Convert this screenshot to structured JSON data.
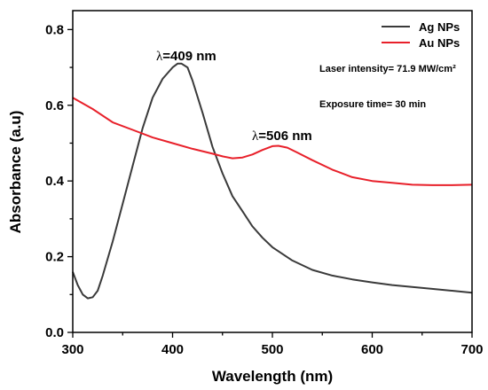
{
  "chart_data": {
    "type": "line",
    "xlabel": "Wavelength (nm)",
    "ylabel": "Absorbance (a.u)",
    "xlim": [
      300,
      700
    ],
    "ylim": [
      0,
      0.85
    ],
    "x_ticks": [
      "300",
      "400",
      "500",
      "600",
      "700"
    ],
    "y_ticks": [
      "0.0",
      "0.2",
      "0.4",
      "0.6",
      "0.8"
    ],
    "grid": false,
    "legend_position": "top-right",
    "series": [
      {
        "name": "Ag NPs",
        "color": "#3a3a3a",
        "x": [
          300,
          305,
          310,
          315,
          320,
          325,
          330,
          340,
          350,
          360,
          370,
          380,
          390,
          400,
          405,
          409,
          415,
          420,
          430,
          440,
          450,
          460,
          470,
          480,
          490,
          500,
          520,
          540,
          560,
          580,
          600,
          620,
          640,
          660,
          680,
          700
        ],
        "y": [
          0.16,
          0.125,
          0.1,
          0.09,
          0.093,
          0.11,
          0.15,
          0.24,
          0.34,
          0.44,
          0.54,
          0.62,
          0.67,
          0.7,
          0.71,
          0.71,
          0.7,
          0.665,
          0.58,
          0.49,
          0.42,
          0.36,
          0.32,
          0.28,
          0.25,
          0.225,
          0.19,
          0.165,
          0.15,
          0.14,
          0.132,
          0.125,
          0.12,
          0.115,
          0.11,
          0.105
        ]
      },
      {
        "name": "Au NPs",
        "color": "#e8202a",
        "x": [
          300,
          320,
          340,
          360,
          380,
          400,
          420,
          440,
          450,
          460,
          470,
          480,
          490,
          500,
          506,
          515,
          525,
          540,
          560,
          580,
          600,
          620,
          640,
          660,
          680,
          700
        ],
        "y": [
          0.62,
          0.59,
          0.555,
          0.535,
          0.515,
          0.5,
          0.485,
          0.472,
          0.465,
          0.46,
          0.462,
          0.47,
          0.482,
          0.492,
          0.493,
          0.488,
          0.475,
          0.455,
          0.43,
          0.41,
          0.4,
          0.395,
          0.39,
          0.389,
          0.389,
          0.39
        ]
      }
    ],
    "peak_labels": [
      {
        "lambda": "λ",
        "rest": "=409 nm"
      },
      {
        "lambda": "λ",
        "rest": "=506 nm"
      }
    ],
    "annotations": [
      "Laser intensity= 71.9 MW/cm²",
      "Exposure time= 30 min"
    ]
  }
}
